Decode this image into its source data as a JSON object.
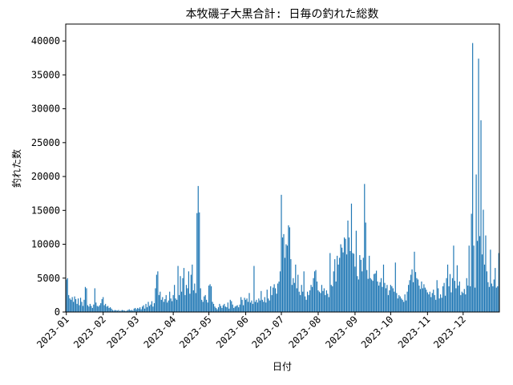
{
  "chart_data": {
    "type": "bar",
    "title": "本牧磯子大黒合計: 日毎の釣れた総数",
    "xlabel": "日付",
    "ylabel": "釣れた数",
    "color": "#1f77b4",
    "grid": false,
    "ylim": [
      0,
      42500
    ],
    "yticks": [
      0,
      5000,
      10000,
      15000,
      20000,
      25000,
      30000,
      35000,
      40000
    ],
    "categories": [
      "2023-01",
      null,
      null,
      null,
      null,
      null,
      null,
      null,
      null,
      null,
      null,
      null,
      null,
      null,
      null,
      null,
      null,
      null,
      null,
      null,
      null,
      null,
      null,
      null,
      null,
      null,
      null,
      null,
      null,
      null,
      null,
      "2023-02",
      null,
      null,
      null,
      null,
      null,
      null,
      null,
      null,
      null,
      null,
      null,
      null,
      null,
      null,
      null,
      null,
      null,
      null,
      null,
      null,
      null,
      null,
      null,
      null,
      null,
      null,
      null,
      "2023-03",
      null,
      null,
      null,
      null,
      null,
      null,
      null,
      null,
      null,
      null,
      null,
      null,
      null,
      null,
      null,
      null,
      null,
      null,
      null,
      null,
      null,
      null,
      null,
      null,
      null,
      null,
      null,
      null,
      null,
      null,
      "2023-04",
      null,
      null,
      null,
      null,
      null,
      null,
      null,
      null,
      null,
      null,
      null,
      null,
      null,
      null,
      null,
      null,
      null,
      null,
      null,
      null,
      null,
      null,
      null,
      null,
      null,
      null,
      null,
      null,
      null,
      "2023-05",
      null,
      null,
      null,
      null,
      null,
      null,
      null,
      null,
      null,
      null,
      null,
      null,
      null,
      null,
      null,
      null,
      null,
      null,
      null,
      null,
      null,
      null,
      null,
      null,
      null,
      null,
      null,
      null,
      null,
      null,
      "2023-06",
      null,
      null,
      null,
      null,
      null,
      null,
      null,
      null,
      null,
      null,
      null,
      null,
      null,
      null,
      null,
      null,
      null,
      null,
      null,
      null,
      null,
      null,
      null,
      null,
      null,
      null,
      null,
      null,
      null,
      "2023-07",
      null,
      null,
      null,
      null,
      null,
      null,
      null,
      null,
      null,
      null,
      null,
      null,
      null,
      null,
      null,
      null,
      null,
      null,
      null,
      null,
      null,
      null,
      null,
      null,
      null,
      null,
      null,
      null,
      null,
      null,
      "2023-08",
      null,
      null,
      null,
      null,
      null,
      null,
      null,
      null,
      null,
      null,
      null,
      null,
      null,
      null,
      null,
      null,
      null,
      null,
      null,
      null,
      null,
      null,
      null,
      null,
      null,
      null,
      null,
      null,
      null,
      null,
      "2023-09",
      null,
      null,
      null,
      null,
      null,
      null,
      null,
      null,
      null,
      null,
      null,
      null,
      null,
      null,
      null,
      null,
      null,
      null,
      null,
      null,
      null,
      null,
      null,
      null,
      null,
      null,
      null,
      null,
      null,
      "2023-10",
      null,
      null,
      null,
      null,
      null,
      null,
      null,
      null,
      null,
      null,
      null,
      null,
      null,
      null,
      null,
      null,
      null,
      null,
      null,
      null,
      null,
      null,
      null,
      null,
      null,
      null,
      null,
      null,
      null,
      null,
      "2023-11",
      null,
      null,
      null,
      null,
      null,
      null,
      null,
      null,
      null,
      null,
      null,
      null,
      null,
      null,
      null,
      null,
      null,
      null,
      null,
      null,
      null,
      null,
      null,
      null,
      null,
      null,
      null,
      null,
      null,
      "2023-12",
      null,
      null,
      null,
      null,
      null,
      null,
      null,
      null,
      null,
      null,
      null,
      null,
      null,
      null,
      null,
      null,
      null,
      null,
      null,
      null,
      null,
      null,
      null,
      null,
      null,
      null,
      null,
      null,
      null,
      null
    ],
    "values": [
      4800,
      5000,
      2500,
      2000,
      1800,
      2200,
      1500,
      2300,
      1900,
      1200,
      2000,
      1000,
      2100,
      1500,
      900,
      1800,
      3700,
      3500,
      1000,
      800,
      1200,
      900,
      600,
      1100,
      3500,
      1400,
      900,
      800,
      1000,
      1300,
      1900,
      2200,
      1000,
      1200,
      800,
      900,
      600,
      700,
      500,
      300,
      200,
      300,
      250,
      200,
      300,
      150,
      200,
      300,
      250,
      200,
      150,
      200,
      300,
      400,
      250,
      300,
      200,
      500,
      600,
      400,
      600,
      500,
      700,
      400,
      800,
      1000,
      500,
      1200,
      700,
      1500,
      900,
      1100,
      1600,
      800,
      1300,
      3500,
      5500,
      6000,
      2500,
      3000,
      1800,
      2200,
      1500,
      1900,
      2500,
      1400,
      1700,
      3000,
      2000,
      1600,
      2500,
      4000,
      2000,
      1800,
      6800,
      2500,
      5300,
      3000,
      5000,
      6500,
      2500,
      4000,
      3500,
      6000,
      2700,
      5500,
      7000,
      3200,
      4200,
      2800,
      14600,
      18600,
      14700,
      3500,
      1800,
      1500,
      2300,
      2500,
      1800,
      1400,
      3900,
      4100,
      3800,
      1500,
      1200,
      800,
      600,
      400,
      700,
      1200,
      900,
      600,
      1000,
      1200,
      800,
      700,
      1400,
      500,
      1800,
      1600,
      1100,
      600,
      800,
      900,
      1000,
      700,
      1100,
      2200,
      1800,
      1000,
      2100,
      1800,
      2000,
      1500,
      2800,
      1400,
      1700,
      1200,
      6800,
      1500,
      1800,
      1400,
      2000,
      1700,
      3100,
      1800,
      1500,
      2200,
      1400,
      3300,
      2000,
      1700,
      3800,
      2500,
      3600,
      4100,
      3500,
      2700,
      4200,
      4500,
      6000,
      17300,
      11000,
      11500,
      8000,
      10000,
      9800,
      12800,
      12500,
      7800,
      4000,
      5000,
      4300,
      7000,
      3500,
      5500,
      3000,
      2500,
      4000,
      3000,
      6000,
      2300,
      1800,
      3000,
      2500,
      3200,
      4000,
      3700,
      5000,
      6000,
      6200,
      4500,
      3200,
      3000,
      2800,
      4000,
      3100,
      3500,
      2500,
      3200,
      2700,
      2200,
      8700,
      4000,
      3800,
      6000,
      7800,
      4500,
      8300,
      7000,
      8000,
      10000,
      9500,
      8800,
      11000,
      10800,
      8500,
      13500,
      11000,
      9000,
      16000,
      8700,
      8600,
      6700,
      12000,
      5300,
      4800,
      8400,
      7700,
      6000,
      8000,
      18900,
      13200,
      6200,
      4900,
      8300,
      5000,
      4800,
      4600,
      5600,
      5700,
      6100,
      4500,
      3900,
      4400,
      5000,
      3700,
      7000,
      4300,
      3500,
      4000,
      2500,
      3200,
      4000,
      3800,
      3500,
      3000,
      7300,
      2800,
      2000,
      2500,
      2300,
      2000,
      1800,
      1500,
      2600,
      1700,
      3000,
      4000,
      4700,
      5500,
      6300,
      4400,
      8900,
      5900,
      5000,
      4800,
      3900,
      3400,
      4500,
      3500,
      4100,
      3600,
      3300,
      2900,
      2600,
      3000,
      2200,
      2800,
      3300,
      2500,
      1800,
      4700,
      3500,
      2000,
      2600,
      2100,
      3800,
      4300,
      2400,
      5000,
      7000,
      3800,
      5600,
      2900,
      5000,
      9800,
      4600,
      3500,
      6900,
      3900,
      4500,
      2500,
      3000,
      2800,
      3400,
      2600,
      5000,
      3900,
      9800,
      3800,
      14500,
      39700,
      9800,
      3600,
      20300,
      10500,
      37400,
      11200,
      28300,
      8500,
      15100,
      7000,
      11300,
      6000,
      4400,
      3700,
      9200,
      4200,
      3800,
      4800,
      6500,
      3600,
      3800,
      8700
    ]
  }
}
